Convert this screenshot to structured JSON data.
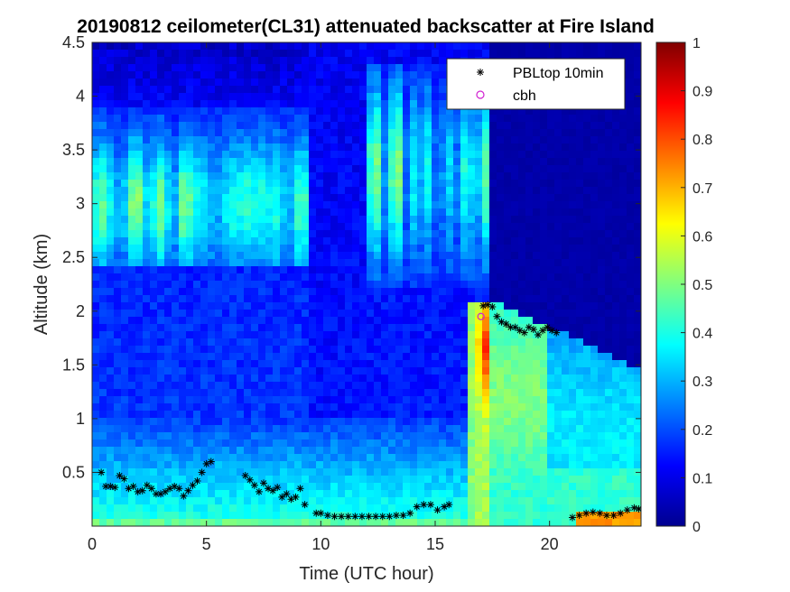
{
  "chart_data": {
    "type": "heatmap",
    "title": "20190812 ceilometer(CL31) attenuated backscatter at Fire Island",
    "xlabel": "Time (UTC hour)",
    "ylabel": "Altitude (km)",
    "xlim": [
      0,
      24
    ],
    "ylim": [
      0,
      4.5
    ],
    "x_ticks": [
      "0",
      "5",
      "10",
      "15",
      "20"
    ],
    "x_tick_values": [
      0,
      5,
      10,
      15,
      20
    ],
    "y_ticks": [
      "0.5",
      "1",
      "1.5",
      "2",
      "2.5",
      "3",
      "3.5",
      "4",
      "4.5"
    ],
    "y_tick_values": [
      0.5,
      1,
      1.5,
      2,
      2.5,
      3,
      3.5,
      4,
      4.5
    ],
    "colorbar": {
      "range": [
        0,
        1
      ],
      "ticks": [
        "0",
        "0.1",
        "0.2",
        "0.3",
        "0.4",
        "0.5",
        "0.6",
        "0.7",
        "0.8",
        "0.9",
        "1"
      ],
      "tick_values": [
        0,
        0.1,
        0.2,
        0.3,
        0.4,
        0.5,
        0.6,
        0.7,
        0.8,
        0.9,
        1
      ],
      "colormap": "jet"
    },
    "legend": {
      "placement": "top-right",
      "entries": [
        {
          "label": "PBLtop 10min",
          "marker": "asterisk",
          "color": "#000000"
        },
        {
          "label": "cbh",
          "marker": "circle",
          "color": "#d020d0"
        }
      ]
    },
    "series": [
      {
        "name": "PBLtop 10min",
        "marker": "asterisk",
        "x": [
          0.4,
          0.6,
          0.8,
          1.0,
          1.2,
          1.4,
          1.6,
          1.8,
          2.0,
          2.2,
          2.4,
          2.6,
          2.8,
          3.0,
          3.2,
          3.4,
          3.6,
          3.8,
          4.0,
          4.2,
          4.4,
          4.6,
          4.8,
          5.0,
          5.2,
          6.7,
          6.9,
          7.1,
          7.3,
          7.5,
          7.7,
          7.9,
          8.1,
          8.3,
          8.5,
          8.7,
          8.9,
          9.1,
          9.3,
          9.8,
          10.0,
          10.3,
          10.6,
          10.9,
          11.2,
          11.5,
          11.8,
          12.1,
          12.4,
          12.7,
          13.0,
          13.3,
          13.6,
          13.9,
          14.2,
          14.5,
          14.8,
          15.1,
          15.4,
          15.6,
          17.1,
          17.3,
          17.5,
          17.7,
          17.9,
          18.1,
          18.3,
          18.5,
          18.7,
          18.9,
          19.1,
          19.3,
          19.5,
          19.7,
          19.9,
          20.1,
          20.3,
          21.0,
          21.3,
          21.6,
          21.9,
          22.2,
          22.5,
          22.8,
          23.1,
          23.4,
          23.7,
          23.9
        ],
        "y": [
          0.5,
          0.37,
          0.37,
          0.36,
          0.47,
          0.44,
          0.35,
          0.37,
          0.32,
          0.33,
          0.38,
          0.35,
          0.3,
          0.3,
          0.32,
          0.35,
          0.37,
          0.35,
          0.28,
          0.33,
          0.38,
          0.42,
          0.5,
          0.58,
          0.6,
          0.47,
          0.43,
          0.38,
          0.32,
          0.4,
          0.35,
          0.33,
          0.36,
          0.27,
          0.3,
          0.25,
          0.27,
          0.35,
          0.2,
          0.12,
          0.12,
          0.1,
          0.09,
          0.09,
          0.09,
          0.09,
          0.09,
          0.09,
          0.09,
          0.09,
          0.09,
          0.1,
          0.1,
          0.12,
          0.18,
          0.2,
          0.2,
          0.15,
          0.18,
          0.2,
          2.05,
          2.06,
          2.04,
          1.95,
          1.9,
          1.88,
          1.85,
          1.85,
          1.82,
          1.8,
          1.85,
          1.83,
          1.78,
          1.82,
          1.85,
          1.82,
          1.8,
          0.08,
          0.1,
          0.12,
          0.13,
          0.12,
          0.1,
          0.1,
          0.12,
          0.15,
          0.17,
          0.16
        ]
      },
      {
        "name": "cbh",
        "marker": "circle",
        "x": [
          17.0
        ],
        "y": [
          1.95
        ]
      }
    ]
  }
}
